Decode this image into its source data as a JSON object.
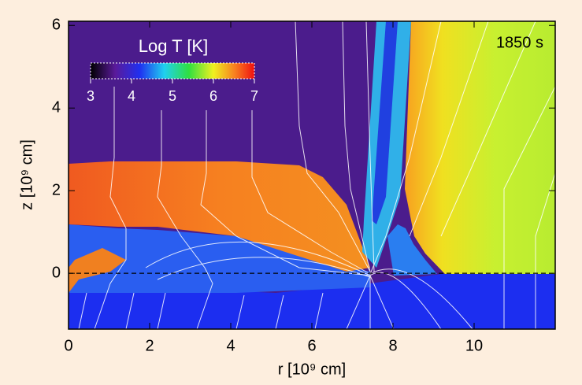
{
  "chart_data": {
    "type": "heatmap",
    "xlabel": "r [10⁹ cm]",
    "ylabel": "z [10⁹ cm]",
    "annotation": "1850 s",
    "xlim": [
      0,
      12
    ],
    "xticks": [
      0,
      2,
      4,
      6,
      8,
      10
    ],
    "ylim": [
      -1.35,
      6.1
    ],
    "yticks": [
      0,
      2,
      4,
      6
    ],
    "hline": 0,
    "colorbar": {
      "label": "Log T [K]",
      "lim": [
        3,
        7
      ],
      "ticks": [
        3,
        4,
        5,
        6,
        7
      ]
    }
  }
}
